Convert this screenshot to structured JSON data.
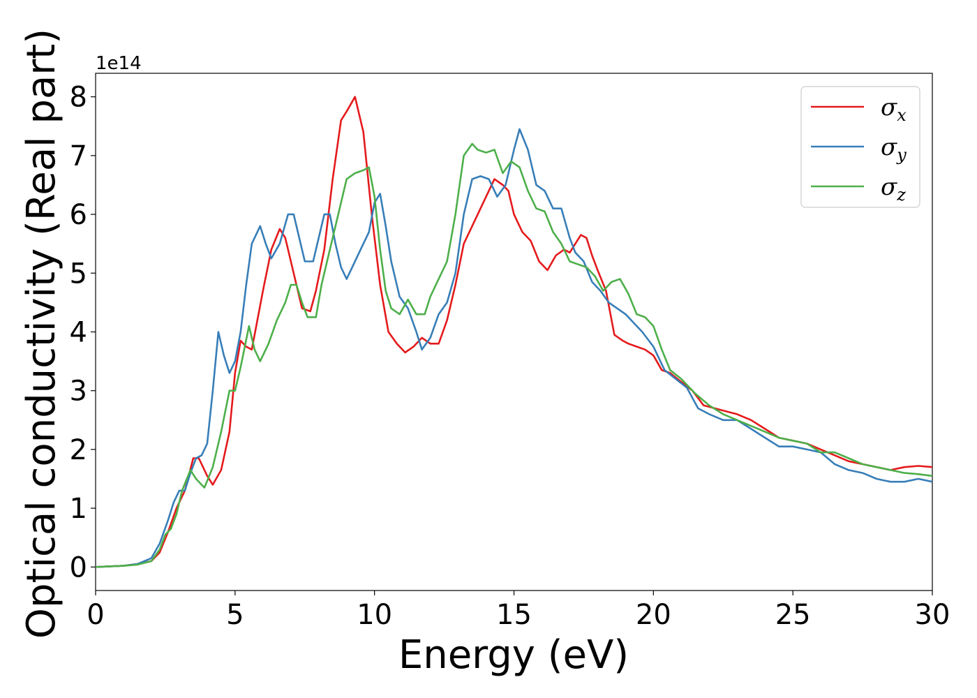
{
  "chart_data": {
    "type": "line",
    "xlabel": "Energy (eV)",
    "ylabel": "Optical conductivity (Real part)",
    "y_offset_label": "1e14",
    "xlim": [
      0,
      30
    ],
    "ylim": [
      -0.4,
      8.4
    ],
    "x_ticks": [
      0,
      5,
      10,
      15,
      20,
      25,
      30
    ],
    "y_ticks": [
      0,
      1,
      2,
      3,
      4,
      5,
      6,
      7,
      8
    ],
    "grid": false,
    "legend_position": "top-right",
    "series": [
      {
        "name": "σx",
        "symbol": "σ",
        "subscript": "x",
        "color": "#e41a1c",
        "x": [
          0,
          1,
          1.5,
          2,
          2.3,
          2.6,
          2.9,
          3.2,
          3.5,
          3.7,
          4.0,
          4.2,
          4.5,
          4.8,
          5.0,
          5.2,
          5.4,
          5.6,
          5.8,
          6.0,
          6.3,
          6.6,
          6.8,
          7.1,
          7.4,
          7.7,
          7.9,
          8.2,
          8.5,
          8.8,
          9.0,
          9.3,
          9.6,
          9.9,
          10.2,
          10.5,
          10.8,
          11.1,
          11.4,
          11.7,
          12.0,
          12.3,
          12.6,
          12.9,
          13.2,
          13.5,
          13.9,
          14.3,
          14.6,
          14.8,
          15.0,
          15.3,
          15.6,
          15.9,
          16.2,
          16.5,
          16.8,
          17.0,
          17.2,
          17.4,
          17.6,
          17.8,
          18.0,
          18.3,
          18.6,
          18.9,
          19.1,
          19.4,
          19.7,
          20.0,
          20.3,
          20.6,
          21.0,
          21.4,
          21.8,
          22.2,
          22.6,
          23.0,
          23.5,
          24.0,
          24.5,
          25.0,
          25.5,
          26.0,
          26.5,
          27.0,
          27.5,
          28.0,
          28.5,
          29.0,
          29.5,
          30.0
        ],
        "values": [
          0.0,
          0.02,
          0.05,
          0.1,
          0.25,
          0.6,
          1.0,
          1.3,
          1.85,
          1.85,
          1.55,
          1.4,
          1.65,
          2.3,
          3.3,
          3.85,
          3.75,
          3.7,
          4.2,
          4.7,
          5.4,
          5.75,
          5.6,
          5.0,
          4.4,
          4.35,
          4.7,
          5.4,
          6.6,
          7.6,
          7.75,
          8.0,
          7.4,
          6.0,
          4.8,
          4.0,
          3.8,
          3.65,
          3.75,
          3.9,
          3.8,
          3.8,
          4.2,
          4.8,
          5.5,
          5.8,
          6.2,
          6.6,
          6.5,
          6.4,
          6.0,
          5.7,
          5.55,
          5.2,
          5.05,
          5.3,
          5.4,
          5.35,
          5.5,
          5.65,
          5.6,
          5.3,
          5.05,
          4.7,
          3.95,
          3.85,
          3.8,
          3.75,
          3.7,
          3.6,
          3.35,
          3.3,
          3.15,
          3.0,
          2.75,
          2.7,
          2.65,
          2.6,
          2.5,
          2.35,
          2.2,
          2.15,
          2.1,
          2.0,
          1.9,
          1.8,
          1.75,
          1.7,
          1.65,
          1.7,
          1.72,
          1.7
        ]
      },
      {
        "name": "σy",
        "symbol": "σ",
        "subscript": "y",
        "color": "#377eb8",
        "x": [
          0,
          1,
          1.5,
          2,
          2.3,
          2.6,
          2.8,
          3.0,
          3.2,
          3.4,
          3.6,
          3.8,
          4.0,
          4.2,
          4.4,
          4.6,
          4.8,
          5.0,
          5.2,
          5.4,
          5.6,
          5.9,
          6.1,
          6.3,
          6.6,
          6.9,
          7.1,
          7.3,
          7.5,
          7.8,
          8.0,
          8.2,
          8.4,
          8.6,
          8.8,
          9.0,
          9.2,
          9.5,
          9.8,
          10.0,
          10.2,
          10.4,
          10.6,
          10.9,
          11.2,
          11.5,
          11.7,
          12.0,
          12.3,
          12.6,
          12.9,
          13.2,
          13.5,
          13.8,
          14.1,
          14.4,
          14.7,
          15.0,
          15.2,
          15.5,
          15.8,
          16.1,
          16.4,
          16.7,
          17.0,
          17.2,
          17.5,
          17.8,
          18.1,
          18.4,
          18.7,
          19.0,
          19.3,
          19.6,
          20.0,
          20.4,
          20.8,
          21.2,
          21.6,
          22.0,
          22.5,
          23.0,
          23.5,
          24.0,
          24.5,
          25.0,
          25.5,
          26.0,
          26.5,
          27.0,
          27.5,
          28.0,
          28.5,
          29.0,
          29.5,
          30.0
        ],
        "values": [
          0.0,
          0.02,
          0.05,
          0.15,
          0.4,
          0.8,
          1.1,
          1.3,
          1.3,
          1.6,
          1.85,
          1.9,
          2.1,
          3.0,
          4.0,
          3.6,
          3.3,
          3.5,
          4.0,
          4.8,
          5.5,
          5.8,
          5.5,
          5.25,
          5.5,
          6.0,
          6.0,
          5.6,
          5.2,
          5.2,
          5.6,
          6.0,
          6.0,
          5.5,
          5.1,
          4.9,
          5.1,
          5.4,
          5.7,
          6.2,
          6.35,
          5.8,
          5.2,
          4.6,
          4.4,
          4.0,
          3.7,
          3.9,
          4.3,
          4.5,
          5.0,
          6.0,
          6.6,
          6.65,
          6.6,
          6.3,
          6.5,
          7.1,
          7.45,
          7.1,
          6.5,
          6.4,
          6.1,
          6.1,
          5.6,
          5.35,
          5.2,
          4.85,
          4.7,
          4.5,
          4.4,
          4.3,
          4.15,
          4.0,
          3.75,
          3.35,
          3.2,
          3.05,
          2.7,
          2.6,
          2.5,
          2.5,
          2.35,
          2.2,
          2.05,
          2.05,
          2.0,
          1.95,
          1.75,
          1.65,
          1.6,
          1.5,
          1.45,
          1.45,
          1.5,
          1.45
        ]
      },
      {
        "name": "σz",
        "symbol": "σ",
        "subscript": "z",
        "color": "#4daf4a",
        "x": [
          0,
          1,
          1.5,
          2,
          2.3,
          2.5,
          2.7,
          2.9,
          3.1,
          3.4,
          3.6,
          3.9,
          4.2,
          4.5,
          4.8,
          5.0,
          5.2,
          5.5,
          5.7,
          5.9,
          6.2,
          6.5,
          6.8,
          7.0,
          7.2,
          7.4,
          7.6,
          7.9,
          8.1,
          8.4,
          8.7,
          9.0,
          9.3,
          9.6,
          9.8,
          10.0,
          10.2,
          10.4,
          10.6,
          10.9,
          11.2,
          11.5,
          11.8,
          12.0,
          12.3,
          12.6,
          12.9,
          13.2,
          13.5,
          13.7,
          14.0,
          14.3,
          14.6,
          14.9,
          15.2,
          15.5,
          15.8,
          16.1,
          16.4,
          16.7,
          17.0,
          17.3,
          17.6,
          17.9,
          18.2,
          18.5,
          18.8,
          19.1,
          19.4,
          19.7,
          20.0,
          20.3,
          20.6,
          21.0,
          21.5,
          22.0,
          22.5,
          23.0,
          23.5,
          24.0,
          24.5,
          25.0,
          25.5,
          26.0,
          26.5,
          27.0,
          27.5,
          28.0,
          28.5,
          29.0,
          29.5,
          30.0
        ],
        "values": [
          0.0,
          0.02,
          0.04,
          0.1,
          0.3,
          0.55,
          0.65,
          0.9,
          1.3,
          1.65,
          1.5,
          1.35,
          1.7,
          2.3,
          3.0,
          3.0,
          3.4,
          4.1,
          3.7,
          3.5,
          3.8,
          4.2,
          4.5,
          4.8,
          4.8,
          4.5,
          4.25,
          4.25,
          4.8,
          5.4,
          6.0,
          6.6,
          6.7,
          6.75,
          6.8,
          6.3,
          5.4,
          4.7,
          4.4,
          4.3,
          4.55,
          4.3,
          4.3,
          4.6,
          4.9,
          5.2,
          6.0,
          7.0,
          7.2,
          7.1,
          7.05,
          7.1,
          6.7,
          6.9,
          6.8,
          6.4,
          6.1,
          6.05,
          5.7,
          5.5,
          5.2,
          5.15,
          5.1,
          4.95,
          4.7,
          4.85,
          4.9,
          4.65,
          4.3,
          4.25,
          4.1,
          3.7,
          3.35,
          3.2,
          2.95,
          2.75,
          2.6,
          2.5,
          2.4,
          2.3,
          2.2,
          2.15,
          2.1,
          1.95,
          1.95,
          1.85,
          1.75,
          1.7,
          1.65,
          1.6,
          1.58,
          1.55
        ]
      }
    ]
  }
}
